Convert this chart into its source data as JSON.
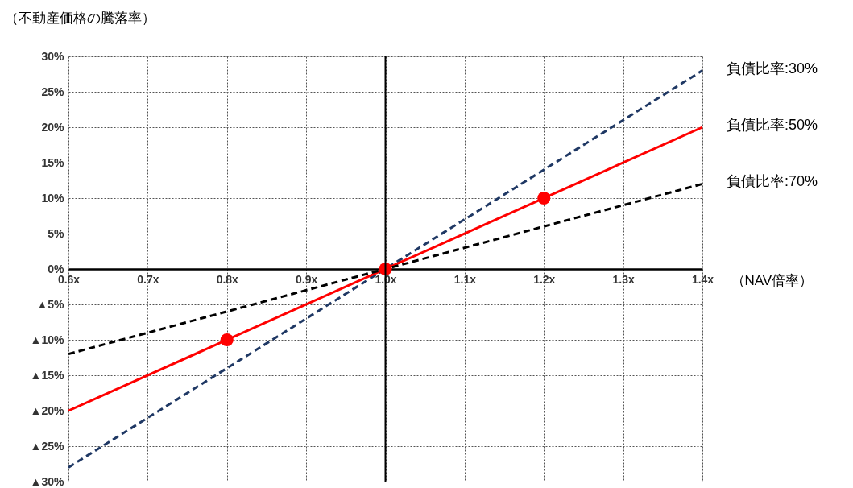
{
  "chart_data": {
    "type": "line",
    "ylabel": "（不動産価格の騰落率）",
    "xlabel": "（NAV倍率）",
    "xlim": [
      0.6,
      1.4
    ],
    "xticks": [
      {
        "value": 0.6,
        "label": "0.6x"
      },
      {
        "value": 0.7,
        "label": "0.7x"
      },
      {
        "value": 0.8,
        "label": "0.8x"
      },
      {
        "value": 0.9,
        "label": "0.9x"
      },
      {
        "value": 1.0,
        "label": "1.0x"
      },
      {
        "value": 1.1,
        "label": "1.1x"
      },
      {
        "value": 1.2,
        "label": "1.2x"
      },
      {
        "value": 1.3,
        "label": "1.3x"
      },
      {
        "value": 1.4,
        "label": "1.4x"
      }
    ],
    "ylim": [
      -30,
      30
    ],
    "yticks": [
      {
        "value": -30,
        "label": "▲30%"
      },
      {
        "value": -25,
        "label": "▲25%"
      },
      {
        "value": -20,
        "label": "▲20%"
      },
      {
        "value": -15,
        "label": "▲15%"
      },
      {
        "value": -10,
        "label": "▲10%"
      },
      {
        "value": -5,
        "label": "▲5%"
      },
      {
        "value": 0,
        "label": "0%"
      },
      {
        "value": 5,
        "label": "5%"
      },
      {
        "value": 10,
        "label": "10%"
      },
      {
        "value": 15,
        "label": "15%"
      },
      {
        "value": 20,
        "label": "20%"
      },
      {
        "value": 25,
        "label": "25%"
      },
      {
        "value": 30,
        "label": "30%"
      }
    ],
    "grid": true,
    "ref_lines": [
      {
        "axis": "x",
        "value": 1.0,
        "color": "#000000"
      }
    ],
    "series": [
      {
        "name": "負債比率:30%",
        "color": "#1f3864",
        "line_style": "dashed",
        "x": [
          0.6,
          1.4
        ],
        "values": [
          -28,
          28
        ]
      },
      {
        "name": "負債比率:50%",
        "color": "#ff0000",
        "line_style": "solid",
        "x": [
          0.6,
          1.4
        ],
        "values": [
          -20,
          20
        ]
      },
      {
        "name": "負債比率:70%",
        "color": "#000000",
        "line_style": "dashed",
        "x": [
          0.6,
          1.4
        ],
        "values": [
          -12,
          12
        ]
      },
      {
        "type": "scatter",
        "color": "#ff0000",
        "marker": "circle",
        "x": [
          0.8,
          1.0,
          1.2
        ],
        "values": [
          -10,
          0,
          10
        ]
      }
    ]
  }
}
